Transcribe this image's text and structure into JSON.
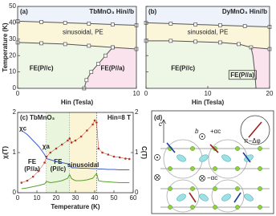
{
  "chart_data": [
    {
      "type": "line",
      "label": "(a)",
      "title": "TbMnO₃ Hin//b",
      "xlabel": "Hin (Tesla)",
      "ylabel": "Temperature (K)",
      "xlim": [
        0,
        10
      ],
      "xticks": [
        0,
        10
      ],
      "ylim": [
        0,
        50
      ],
      "yticks": [
        0,
        10,
        20,
        30,
        40,
        50
      ],
      "fills": [
        "#eef3fb",
        "#fbf5da",
        "#eef6e6",
        "#fbe3ee"
      ],
      "region_labels": [
        "sinusoidal, PE",
        "FE(P//c)",
        "FE(P//a)"
      ],
      "series": [
        {
          "color": "#555555",
          "marker": "square",
          "x": [
            0,
            2,
            4,
            6,
            8,
            10
          ],
          "values": [
            41,
            40.5,
            40,
            39.5,
            39,
            38.5
          ]
        },
        {
          "color": "#555555",
          "marker": "square",
          "x": [
            0,
            2,
            4,
            6,
            8,
            10
          ],
          "values": [
            28,
            27.5,
            27,
            26,
            25,
            24
          ]
        },
        {
          "color": "#555555",
          "marker": "square",
          "x": [
            5.6,
            5.8,
            6.2,
            6.8,
            7.4,
            8
          ],
          "values": [
            0,
            5,
            10,
            15,
            20,
            25
          ]
        }
      ]
    },
    {
      "type": "line",
      "label": "(b)",
      "title": "DyMnO₃ Hin//b",
      "xlabel": "Hin (Tesla)",
      "show_ytick_labels": false,
      "xlim": [
        0,
        20
      ],
      "xticks": [
        0,
        10,
        20
      ],
      "ylim": [
        0,
        50
      ],
      "yticks": [
        0,
        10,
        20,
        30,
        40,
        50
      ],
      "fills": [
        "#eef3fb",
        "#fbf5da",
        "#eef6e6",
        "#fbe3ee"
      ],
      "region_labels": [
        "sinusoidal, PE",
        "FE(P//c)",
        "FE(P//a)"
      ],
      "series": [
        {
          "color": "#555555",
          "marker": "square",
          "x": [
            0,
            4,
            8,
            12,
            16,
            20
          ],
          "values": [
            40,
            39.5,
            39,
            38.5,
            38,
            37.5
          ]
        },
        {
          "color": "#555555",
          "marker": "square",
          "x": [
            0,
            4,
            8,
            12,
            15,
            17,
            20
          ],
          "values": [
            29,
            29,
            28.5,
            28,
            27,
            25,
            24
          ]
        },
        {
          "color": "#555555",
          "marker": "none",
          "x": [
            17.8,
            17.6,
            17.3,
            17
          ],
          "values": [
            0,
            10,
            20,
            25
          ]
        }
      ]
    },
    {
      "type": "line",
      "label": "(c) TbMnO₃",
      "annotation": "Hin=8 T",
      "xlabel": "Temperature (K)",
      "ylabel": "χᵢ(T)",
      "y2label": "C(T)",
      "xlim": [
        0,
        60
      ],
      "xticks": [
        0,
        10,
        20,
        30,
        40,
        50,
        60
      ],
      "ylim": [
        0,
        2
      ],
      "yticks": [
        0,
        1,
        2
      ],
      "y2lim": [
        0,
        2
      ],
      "y2ticks": [
        0,
        1,
        2
      ],
      "bands": [
        {
          "range": [
            0,
            15
          ],
          "color": "#ffffff",
          "label": [
            "FE",
            "(P//a)"
          ]
        },
        {
          "range": [
            15,
            27
          ],
          "color": "#e9f5dd",
          "label": [
            "FE",
            "(P//c)"
          ]
        },
        {
          "range": [
            27,
            41
          ],
          "color": "#fbf5d6",
          "label": [
            "sinusoidal"
          ]
        }
      ],
      "x": [
        2,
        5,
        8,
        11,
        14,
        15,
        17,
        20,
        23,
        26,
        27,
        28,
        30,
        33,
        36,
        39,
        40,
        41,
        42,
        44,
        47,
        50,
        53,
        56,
        58
      ],
      "series": [
        {
          "name": "χc",
          "color": "#3a5fd0",
          "marker": "none",
          "values": [
            1.55,
            1.45,
            1.3,
            1.15,
            0.95,
            0.85,
            0.82,
            0.78,
            0.75,
            0.72,
            0.7,
            0.62,
            0.62,
            0.61,
            0.61,
            0.6,
            0.6,
            0.6,
            0.59,
            0.59,
            0.58,
            0.58,
            0.57,
            0.57,
            0.57
          ]
        },
        {
          "name": "χa",
          "color": "#b8321f",
          "marker": "dot",
          "values": [
            0.25,
            0.3,
            0.4,
            0.55,
            0.75,
            0.9,
            1.0,
            1.1,
            1.2,
            1.3,
            1.35,
            1.25,
            1.3,
            1.4,
            1.55,
            1.7,
            1.8,
            1.75,
            1.1,
            1.0,
            0.95,
            0.9,
            0.88,
            0.85,
            0.84
          ]
        },
        {
          "color": "#5aa02c",
          "marker": "none",
          "axis": "y2",
          "values": [
            0.1,
            0.12,
            0.15,
            0.18,
            0.22,
            0.28,
            0.25,
            0.27,
            0.3,
            0.36,
            0.45,
            0.35,
            0.3,
            0.3,
            0.32,
            0.36,
            0.42,
            0.48,
            0.3,
            0.28,
            0.27,
            0.26,
            0.25,
            0.25,
            0.25
          ]
        }
      ]
    }
  ],
  "diagram": {
    "label": "(d)",
    "axis_c": "c",
    "axis_b": "b",
    "plus": "+αc",
    "minus": "−αc",
    "angle": "π−Δφ"
  }
}
